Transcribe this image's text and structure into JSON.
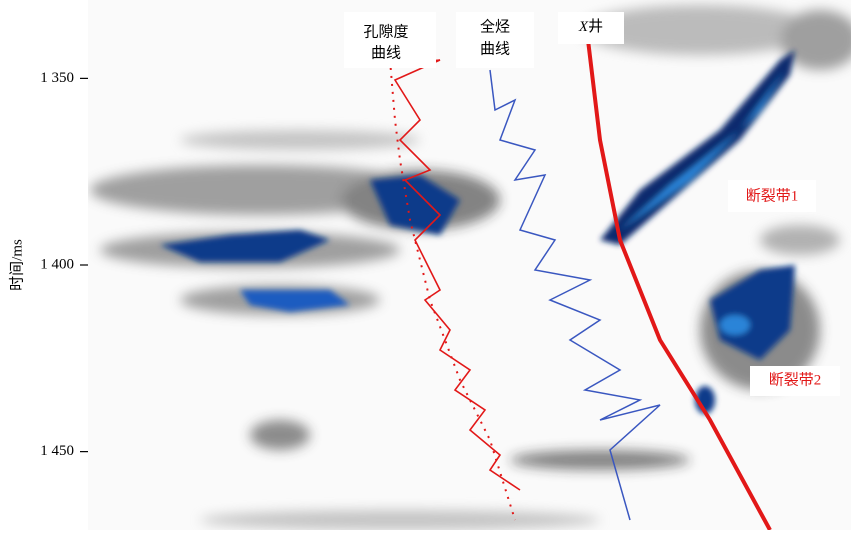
{
  "figure": {
    "y_axis": {
      "label": "时间/ms",
      "lim": [
        1329,
        1471
      ],
      "ticks": [
        {
          "value": 1350,
          "label": "1 350"
        },
        {
          "value": 1400,
          "label": "1 400"
        },
        {
          "value": 1450,
          "label": "1 450"
        }
      ]
    },
    "annotations": {
      "porosity_curve": [
        "孔隙度",
        "曲线"
      ],
      "total_hydrocarbon_curve": [
        "全烃",
        "曲线"
      ],
      "well": [
        "X",
        "井"
      ],
      "fault_zone_1": "断裂带1",
      "fault_zone_2": "断裂带2"
    }
  }
}
